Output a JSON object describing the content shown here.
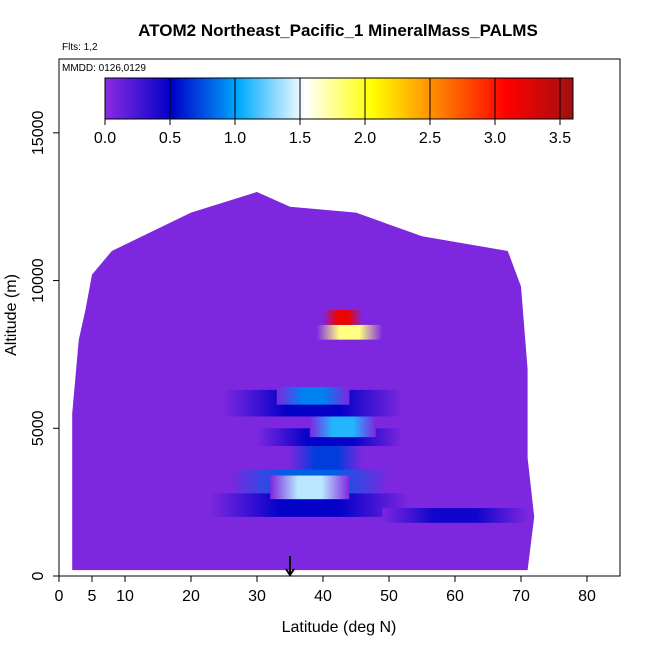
{
  "chart_data": {
    "type": "heatmap",
    "title": "ATOM2 Northeast_Pacific_1 MineralMass_PALMS",
    "flights_label": "Flts: 1,2",
    "date_label": "MMDD: 0126,0129",
    "xlabel": "Latitude (deg N)",
    "ylabel": "Altitude (m)",
    "xlim": [
      0,
      85
    ],
    "ylim": [
      0,
      17500
    ],
    "x_ticks": [
      0,
      5,
      10,
      20,
      30,
      40,
      50,
      60,
      70,
      80
    ],
    "y_ticks": [
      0,
      5000,
      10000,
      15000
    ],
    "colorbar": {
      "range": [
        0,
        3.6
      ],
      "ticks": [
        "0.0",
        "0.5",
        "1.0",
        "1.5",
        "2.0",
        "2.5",
        "3.0",
        "3.5"
      ],
      "tick_values": [
        0,
        0.5,
        1.0,
        1.5,
        2.0,
        2.5,
        3.0,
        3.5
      ],
      "colors": [
        "#8a2be2",
        "#0000c8",
        "#00aaff",
        "#ffffff",
        "#ffff00",
        "#ff8000",
        "#ff0000",
        "#a01010"
      ]
    },
    "background_value": 0.05,
    "envelope": [
      [
        0,
        200
      ],
      [
        2,
        200
      ],
      [
        2,
        5500
      ],
      [
        3,
        8000
      ],
      [
        4,
        9000
      ],
      [
        5,
        10200
      ],
      [
        8,
        11000
      ],
      [
        20,
        12300
      ],
      [
        30,
        13000
      ],
      [
        35,
        12500
      ],
      [
        45,
        12300
      ],
      [
        55,
        11500
      ],
      [
        68,
        11000
      ],
      [
        70,
        9800
      ],
      [
        71,
        7000
      ],
      [
        71,
        4000
      ],
      [
        72,
        2000
      ],
      [
        71,
        200
      ]
    ],
    "enhancements": [
      {
        "lat": [
          23,
          53
        ],
        "alt": [
          2000,
          2800
        ],
        "value": 0.5
      },
      {
        "lat": [
          26,
          50
        ],
        "alt": [
          2800,
          3600
        ],
        "value": 0.8
      },
      {
        "lat": [
          32,
          44
        ],
        "alt": [
          2600,
          3400
        ],
        "value": 1.4
      },
      {
        "lat": [
          35,
          46
        ],
        "alt": [
          3600,
          4400
        ],
        "value": 0.7
      },
      {
        "lat": [
          30,
          52
        ],
        "alt": [
          4400,
          5000
        ],
        "value": 0.5
      },
      {
        "lat": [
          38,
          48
        ],
        "alt": [
          4700,
          5400
        ],
        "value": 1.1
      },
      {
        "lat": [
          25,
          52
        ],
        "alt": [
          5400,
          6300
        ],
        "value": 0.5
      },
      {
        "lat": [
          33,
          44
        ],
        "alt": [
          5800,
          6400
        ],
        "value": 0.9
      },
      {
        "lat": [
          39,
          49
        ],
        "alt": [
          8000,
          8500
        ],
        "value": 1.8
      },
      {
        "lat": [
          40,
          46
        ],
        "alt": [
          8500,
          9000
        ],
        "value": 3.2
      },
      {
        "lat": [
          49,
          71
        ],
        "alt": [
          1800,
          2300
        ],
        "value": 0.45
      }
    ],
    "marker": {
      "lat": 35
    }
  }
}
